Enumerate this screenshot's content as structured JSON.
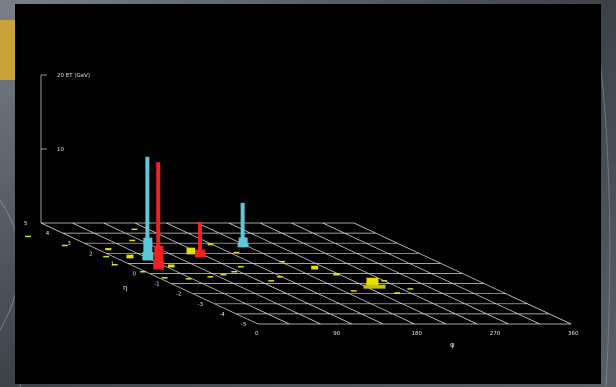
{
  "colors": {
    "background_outer": "#4a5157",
    "panel": "#000000",
    "grid": "#d8d8d8",
    "deposit": "#e8e000",
    "tower_red": "#ee2222",
    "tower_cyan": "#5cc8d8"
  },
  "chart_data": {
    "type": "lego-plot",
    "xlabel": "φ",
    "ylabel": "η",
    "zlabel": "ET (GeV)",
    "x_ticks": [
      "0",
      "90",
      "180",
      "270",
      "360"
    ],
    "y_ticks": [
      "5",
      "4",
      "3",
      "2",
      "1",
      "0",
      "-1",
      "-2",
      "-3",
      "-4",
      "-5"
    ],
    "z_tick_labels": [
      "20 ET (GeV)",
      "10"
    ],
    "x_range": [
      0,
      360
    ],
    "y_range": [
      -5,
      5
    ],
    "z_range": [
      0,
      20
    ],
    "grid": true,
    "towers": [
      {
        "name": "red-1",
        "color": "red",
        "phi": 20,
        "eta": 0.4,
        "et": 14.5
      },
      {
        "name": "cyan-1",
        "color": "cyan",
        "phi": 30,
        "eta": 1.3,
        "et": 14.0
      },
      {
        "name": "red-2",
        "color": "red",
        "phi": 98,
        "eta": 1.6,
        "et": 4.8
      },
      {
        "name": "cyan-2",
        "color": "cyan",
        "phi": 172,
        "eta": 2.6,
        "et": 6.0
      }
    ],
    "yellow_deposits": [
      {
        "phi": 224,
        "eta": -1.3,
        "et": 1.2
      },
      {
        "phi": 200,
        "eta": 0.4,
        "et": 0.5
      },
      {
        "phi": 210,
        "eta": -0.2,
        "et": 0.3
      },
      {
        "phi": 95,
        "eta": 1.9,
        "et": 0.9
      },
      {
        "phi": 40,
        "eta": 0.6,
        "et": 0.4
      },
      {
        "phi": 10,
        "eta": 2.3,
        "et": 0.3
      },
      {
        "phi": 15,
        "eta": 1.5,
        "et": 0.5
      },
      {
        "phi": -10,
        "eta": 1.6,
        "et": 0.2
      },
      {
        "phi": -30,
        "eta": 2.7,
        "et": 0.2
      },
      {
        "phi": -50,
        "eta": 3.6,
        "et": 0.2
      },
      {
        "phi": -20,
        "eta": 0.8,
        "et": 0.2
      },
      {
        "phi": -5,
        "eta": 0.1,
        "et": 0.2
      },
      {
        "phi": 5,
        "eta": -0.5,
        "et": 0.2
      },
      {
        "phi": 30,
        "eta": -0.6,
        "et": 0.2
      },
      {
        "phi": 60,
        "eta": -0.4,
        "et": 0.2
      },
      {
        "phi": 100,
        "eta": 0.1,
        "et": 0.2
      },
      {
        "phi": 120,
        "eta": 0.6,
        "et": 0.2
      },
      {
        "phi": 150,
        "eta": 2.0,
        "et": 0.2
      },
      {
        "phi": 140,
        "eta": 2.8,
        "et": 0.2
      },
      {
        "phi": 60,
        "eta": 3.2,
        "et": 0.2
      },
      {
        "phi": 90,
        "eta": 4.3,
        "et": 0.2
      },
      {
        "phi": 180,
        "eta": 1.1,
        "et": 0.2
      },
      {
        "phi": 190,
        "eta": -1.8,
        "et": 0.2
      },
      {
        "phi": 250,
        "eta": -0.8,
        "et": 0.2
      },
      {
        "phi": 260,
        "eta": -1.6,
        "et": 0.2
      },
      {
        "phi": 120,
        "eta": -0.8,
        "et": 0.2
      },
      {
        "phi": 80,
        "eta": -0.2,
        "et": 0.2
      },
      {
        "phi": 140,
        "eta": -0.4,
        "et": 0.2
      },
      {
        "phi": 235,
        "eta": -2.0,
        "et": 0.2
      }
    ]
  }
}
